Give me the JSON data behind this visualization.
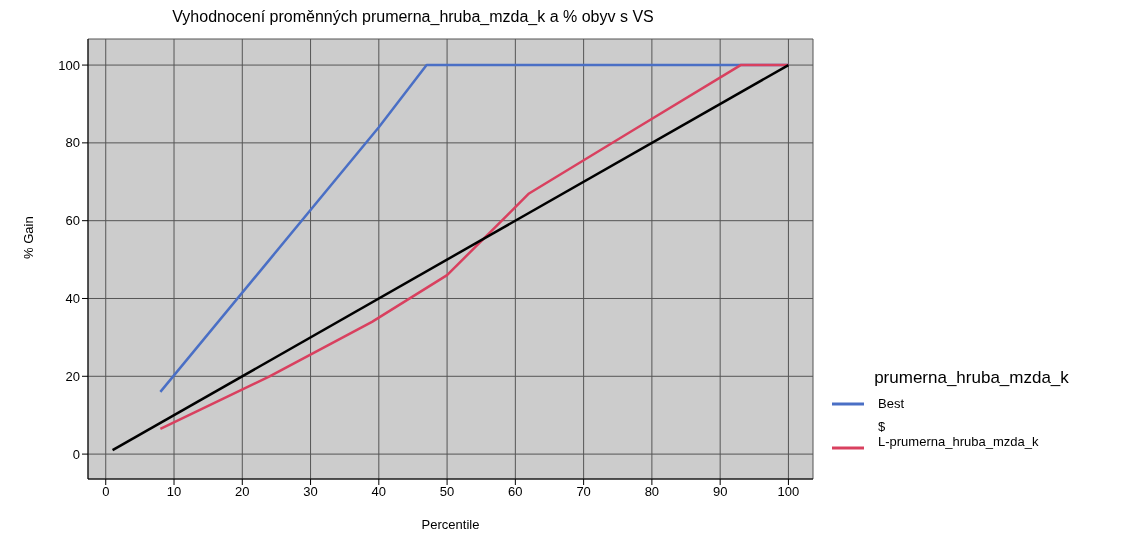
{
  "chart_data": {
    "type": "line",
    "title": "Vyhodnocení proměnných prumerna_hruba_mzda_k a % obyv s VS",
    "xlabel": "Percentile",
    "ylabel": "% Gain",
    "legend_title": "prumerna_hruba_mzda_k",
    "series": [
      {
        "name": "Best",
        "color": "#4a6fc5",
        "x": [
          8,
          24,
          40,
          47,
          100
        ],
        "values": [
          16,
          50,
          84,
          100,
          100
        ]
      },
      {
        "name": "$\nL-prumerna_hruba_mzda_k",
        "color": "#d9405f",
        "x": [
          8,
          24,
          39,
          50,
          62,
          77,
          93,
          100
        ],
        "values": [
          6.5,
          20,
          34,
          46,
          67,
          83,
          100,
          100
        ]
      },
      {
        "color": "#000000",
        "x": [
          1,
          100
        ],
        "values": [
          1,
          100
        ]
      }
    ],
    "xlim": [
      -2.6,
      103.6
    ],
    "xticks": [
      0,
      10,
      20,
      30,
      40,
      50,
      60,
      70,
      80,
      90,
      100
    ],
    "ylim": [
      -6.4,
      106.7
    ],
    "yticks": [
      0,
      20,
      40,
      60,
      80,
      100
    ],
    "grid": true,
    "legend": "right",
    "marker": "none",
    "line_style": "solid"
  }
}
